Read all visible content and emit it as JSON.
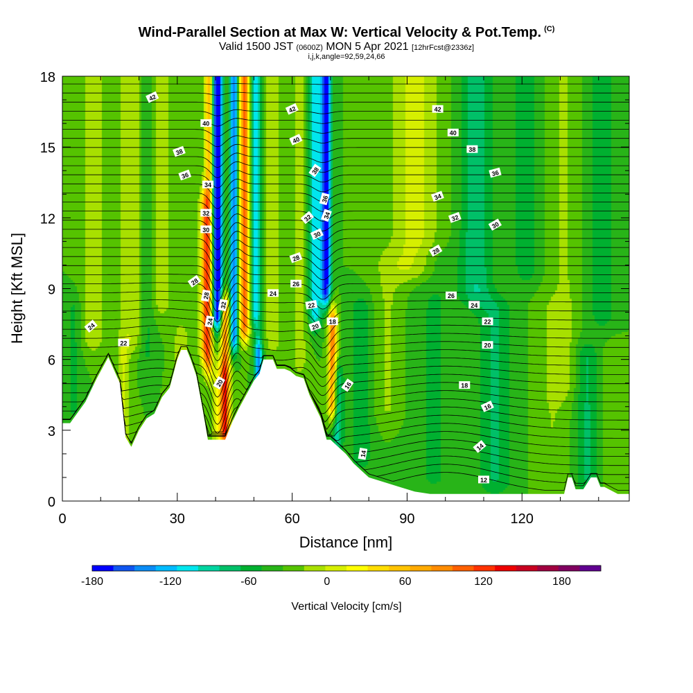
{
  "title": {
    "main": "Wind-Parallel Section at Max W: Vertical Velocity & Pot.Temp.",
    "copyright": "(C)",
    "valid_prefix": "Valid 1500 JST",
    "valid_utc": "(0600Z)",
    "valid_date": "MON 5 Apr 2021",
    "forecast": "[12hrFcst@2336z]",
    "grid_info": "i,j,k,angle=92,59,24,66"
  },
  "chart_data": {
    "type": "heatmap",
    "xlabel": "Distance [nm]",
    "ylabel": "Height [Kft MSL]",
    "xlim": [
      0,
      148
    ],
    "ylim": [
      0,
      18
    ],
    "x_ticks": [
      0,
      30,
      60,
      90,
      120
    ],
    "x_tick_labels": [
      "0",
      "30",
      "60",
      "90",
      "120"
    ],
    "y_ticks": [
      0,
      3,
      6,
      9,
      12,
      15,
      18
    ],
    "y_tick_labels": [
      "0",
      "3",
      "6",
      "9",
      "12",
      "15",
      "18"
    ],
    "terrain": {
      "x": [
        0,
        2,
        6,
        9,
        12,
        15,
        16.5,
        18,
        20,
        22,
        24,
        26,
        28,
        30,
        31,
        32.5,
        33.5,
        35,
        36.5,
        38,
        39.5,
        40.5,
        42.5,
        44.5,
        46,
        48,
        50,
        51.5,
        52.5,
        55,
        56,
        58,
        59.5,
        61,
        63,
        64.5,
        66,
        67.5,
        69,
        70,
        72,
        74,
        76,
        78,
        80,
        84,
        88,
        92,
        96,
        100,
        104,
        108,
        112,
        116,
        120,
        124,
        128,
        131,
        132,
        133,
        134,
        136,
        138,
        139.5,
        140.5,
        141.5,
        145,
        148
      ],
      "height": [
        3.3,
        3.3,
        4.2,
        5.2,
        6.1,
        5.0,
        2.7,
        2.3,
        3.0,
        3.5,
        3.7,
        4.4,
        4.8,
        6.0,
        6.4,
        6.4,
        6.0,
        5.3,
        4.0,
        2.6,
        2.6,
        2.6,
        2.6,
        3.4,
        3.9,
        4.5,
        5.1,
        5.4,
        6.0,
        6.0,
        5.6,
        5.6,
        5.5,
        5.3,
        5.2,
        4.5,
        4.0,
        3.5,
        2.6,
        2.6,
        2.3,
        2.0,
        1.6,
        1.3,
        1.0,
        0.8,
        0.6,
        0.4,
        0.3,
        0.3,
        0.3,
        0.3,
        0.3,
        0.3,
        0.3,
        0.3,
        0.3,
        0.3,
        1.0,
        1.0,
        0.5,
        0.5,
        1.0,
        1.0,
        0.6,
        0.6,
        0.3,
        0.3
      ]
    },
    "vertical_velocity": {
      "units": "cm/s",
      "background": 0,
      "features": [
        {
          "x": 37.2,
          "y_from": 6.5,
          "y_to": 12.5,
          "w": 110,
          "sx": 1.3
        },
        {
          "x": 38.2,
          "y_from": 6.0,
          "y_to": 18,
          "w": 120,
          "sx": 1.1
        },
        {
          "x": 40.5,
          "y_from": 8.0,
          "y_to": 18,
          "w": -190,
          "sx": 1.3
        },
        {
          "x": 42.5,
          "y_from": 3.0,
          "y_to": 8.0,
          "w": 150,
          "sx": 1.2
        },
        {
          "x": 41.5,
          "y_from": 3.0,
          "y_to": 5.2,
          "w": 70,
          "sx": 2.2
        },
        {
          "x": 44.8,
          "y_from": 7.0,
          "y_to": 18,
          "w": -140,
          "sx": 1.1
        },
        {
          "x": 47.5,
          "y_from": 7.5,
          "y_to": 18,
          "w": 170,
          "sx": 1.3
        },
        {
          "x": 50.5,
          "y_from": 8.0,
          "y_to": 18,
          "w": -95,
          "sx": 1.2
        },
        {
          "x": 51.2,
          "y_from": 3.8,
          "y_to": 6.2,
          "w": -130,
          "sx": 1.0
        },
        {
          "x": 55.0,
          "y_from": 7.0,
          "y_to": 18,
          "w": 38,
          "sx": 2.0
        },
        {
          "x": 66.0,
          "y_from": 8.0,
          "y_to": 18,
          "w": -95,
          "sx": 1.6
        },
        {
          "x": 68.8,
          "y_from": 9.0,
          "y_to": 18,
          "w": -175,
          "sx": 1.3
        },
        {
          "x": 70.5,
          "y_from": 4.2,
          "y_to": 7.5,
          "w": 160,
          "sx": 1.1
        },
        {
          "x": 71.8,
          "y_from": 2.8,
          "y_to": 5.0,
          "w": -70,
          "sx": 1.5
        },
        {
          "x": 62.0,
          "y_from": 6.0,
          "y_to": 18,
          "w": 30,
          "sx": 2.0
        },
        {
          "x": 8.0,
          "y_from": 7.0,
          "y_to": 18,
          "w": 35,
          "sx": 3.0
        },
        {
          "x": 18.0,
          "y_from": 7.0,
          "y_to": 18,
          "w": 38,
          "sx": 3.5
        },
        {
          "x": 26.0,
          "y_from": 8.5,
          "y_to": 18,
          "w": 32,
          "sx": 2.8
        },
        {
          "x": 31.0,
          "y_from": 2.8,
          "y_to": 6.8,
          "w": 40,
          "sx": 1.8
        },
        {
          "x": 16.0,
          "y_from": 2.5,
          "y_to": 6.0,
          "w": 42,
          "sx": 1.5
        },
        {
          "x": 22.0,
          "y_from": 6.5,
          "y_to": 18,
          "w": -30,
          "sx": 2.0
        },
        {
          "x": 92.0,
          "y_from": 10.0,
          "y_to": 18,
          "w": 48,
          "sx": 6.0
        },
        {
          "x": 85.0,
          "y_from": 4.0,
          "y_to": 10.0,
          "w": 22,
          "sx": 4.0
        },
        {
          "x": 108.0,
          "y_from": 9.0,
          "y_to": 18,
          "w": -58,
          "sx": 4.0
        },
        {
          "x": 121.0,
          "y_from": 10.0,
          "y_to": 18,
          "w": -38,
          "sx": 3.0
        },
        {
          "x": 131.0,
          "y_from": 5.0,
          "y_to": 18,
          "w": 22,
          "sx": 3.5
        },
        {
          "x": 141.0,
          "y_from": 8.0,
          "y_to": 18,
          "w": -32,
          "sx": 3.5
        },
        {
          "x": 97.0,
          "y_from": 1.0,
          "y_to": 10.0,
          "w": -22,
          "sx": 6.0
        },
        {
          "x": 113.0,
          "y_from": 1.0,
          "y_to": 8.0,
          "w": -42,
          "sx": 4.5
        },
        {
          "x": 128.0,
          "y_from": 1.0,
          "y_to": 8.0,
          "w": 20,
          "sx": 4.0
        },
        {
          "x": 137.0,
          "y_from": 1.0,
          "y_to": 6.0,
          "w": -42,
          "sx": 3.0
        },
        {
          "x": 144.0,
          "y_from": 1.0,
          "y_to": 6.0,
          "w": 14,
          "sx": 3.0
        },
        {
          "x": 78.0,
          "y_from": 2.0,
          "y_to": 8.0,
          "w": -35,
          "sx": 3.0
        },
        {
          "x": 3.0,
          "y_from": 4.0,
          "y_to": 8.0,
          "w": -25,
          "sx": 2.0
        }
      ]
    },
    "potential_temperature": {
      "label_values": [
        12,
        14,
        16,
        18,
        20,
        22,
        24,
        26,
        28,
        30,
        32,
        34,
        36,
        38,
        40,
        42
      ],
      "labels": [
        {
          "text": "42",
          "x": 23.5,
          "y": 17.1,
          "rot": -25
        },
        {
          "text": "40",
          "x": 37.5,
          "y": 16.0,
          "rot": 0
        },
        {
          "text": "38",
          "x": 30.5,
          "y": 14.8,
          "rot": -20
        },
        {
          "text": "36",
          "x": 32.0,
          "y": 13.8,
          "rot": -20
        },
        {
          "text": "34",
          "x": 38.0,
          "y": 13.4,
          "rot": 0
        },
        {
          "text": "32",
          "x": 37.5,
          "y": 12.2,
          "rot": 0
        },
        {
          "text": "30",
          "x": 37.5,
          "y": 11.5,
          "rot": 0
        },
        {
          "text": "28",
          "x": 34.5,
          "y": 9.3,
          "rot": -35
        },
        {
          "text": "28",
          "x": 37.5,
          "y": 8.7,
          "rot": -80
        },
        {
          "text": "24",
          "x": 38.5,
          "y": 7.6,
          "rot": -80
        },
        {
          "text": "32",
          "x": 42.0,
          "y": 8.3,
          "rot": -80
        },
        {
          "text": "20",
          "x": 41.0,
          "y": 5.0,
          "rot": -60
        },
        {
          "text": "24",
          "x": 7.5,
          "y": 7.4,
          "rot": -40
        },
        {
          "text": "22",
          "x": 16.0,
          "y": 6.7,
          "rot": 0
        },
        {
          "text": "42",
          "x": 60.0,
          "y": 16.6,
          "rot": -25
        },
        {
          "text": "40",
          "x": 61.0,
          "y": 15.3,
          "rot": -25
        },
        {
          "text": "38",
          "x": 66.0,
          "y": 14.0,
          "rot": -55
        },
        {
          "text": "36",
          "x": 68.5,
          "y": 12.8,
          "rot": -75
        },
        {
          "text": "34",
          "x": 69.0,
          "y": 12.1,
          "rot": -70
        },
        {
          "text": "32",
          "x": 64.0,
          "y": 12.0,
          "rot": -40
        },
        {
          "text": "30",
          "x": 66.5,
          "y": 11.3,
          "rot": -25
        },
        {
          "text": "28",
          "x": 61.0,
          "y": 10.3,
          "rot": -20
        },
        {
          "text": "26",
          "x": 61.0,
          "y": 9.2,
          "rot": 0
        },
        {
          "text": "24",
          "x": 55.0,
          "y": 8.8,
          "rot": 0
        },
        {
          "text": "22",
          "x": 65.0,
          "y": 8.3,
          "rot": -10
        },
        {
          "text": "20",
          "x": 66.0,
          "y": 7.4,
          "rot": -20
        },
        {
          "text": "18",
          "x": 70.5,
          "y": 7.6,
          "rot": 0
        },
        {
          "text": "16",
          "x": 74.5,
          "y": 4.9,
          "rot": -55
        },
        {
          "text": "14",
          "x": 78.5,
          "y": 2.0,
          "rot": -80
        },
        {
          "text": "42",
          "x": 98.0,
          "y": 16.6,
          "rot": 0
        },
        {
          "text": "40",
          "x": 102.0,
          "y": 15.6,
          "rot": 0
        },
        {
          "text": "38",
          "x": 107.0,
          "y": 14.9,
          "rot": 0
        },
        {
          "text": "36",
          "x": 113.0,
          "y": 13.9,
          "rot": -15
        },
        {
          "text": "34",
          "x": 98.0,
          "y": 12.9,
          "rot": -20
        },
        {
          "text": "32",
          "x": 102.5,
          "y": 12.0,
          "rot": -20
        },
        {
          "text": "30",
          "x": 113.0,
          "y": 11.7,
          "rot": -30
        },
        {
          "text": "28",
          "x": 97.5,
          "y": 10.6,
          "rot": -30
        },
        {
          "text": "26",
          "x": 101.5,
          "y": 8.7,
          "rot": 0
        },
        {
          "text": "24",
          "x": 107.5,
          "y": 8.3,
          "rot": 0
        },
        {
          "text": "22",
          "x": 111.0,
          "y": 7.6,
          "rot": 0
        },
        {
          "text": "20",
          "x": 111.0,
          "y": 6.6,
          "rot": 0
        },
        {
          "text": "18",
          "x": 105.0,
          "y": 4.9,
          "rot": 0
        },
        {
          "text": "16",
          "x": 111.0,
          "y": 4.0,
          "rot": -25
        },
        {
          "text": "14",
          "x": 109.0,
          "y": 2.3,
          "rot": -40
        },
        {
          "text": "12",
          "x": 110.0,
          "y": 0.9,
          "rot": 0
        }
      ]
    },
    "colorbar": {
      "min": -180,
      "max": 210,
      "step": 20,
      "colors": [
        "#0000ff",
        "#0f55f0",
        "#0a8cf5",
        "#00bbff",
        "#00e6ee",
        "#00d4a0",
        "#00c068",
        "#00b030",
        "#28b418",
        "#55c300",
        "#a8e000",
        "#d6ef00",
        "#ffff00",
        "#ffdd00",
        "#ffc300",
        "#ffaa00",
        "#ff8c00",
        "#ff6000",
        "#ff3200",
        "#ee0000",
        "#c80020",
        "#a00040",
        "#800060",
        "#600090"
      ],
      "tick_values": [
        -180,
        -120,
        -60,
        0,
        60,
        120,
        180
      ],
      "tick_labels": [
        "-180",
        "-120",
        "-60",
        "0",
        "60",
        "120",
        "180"
      ],
      "label": "Vertical Velocity [cm/s]"
    }
  }
}
